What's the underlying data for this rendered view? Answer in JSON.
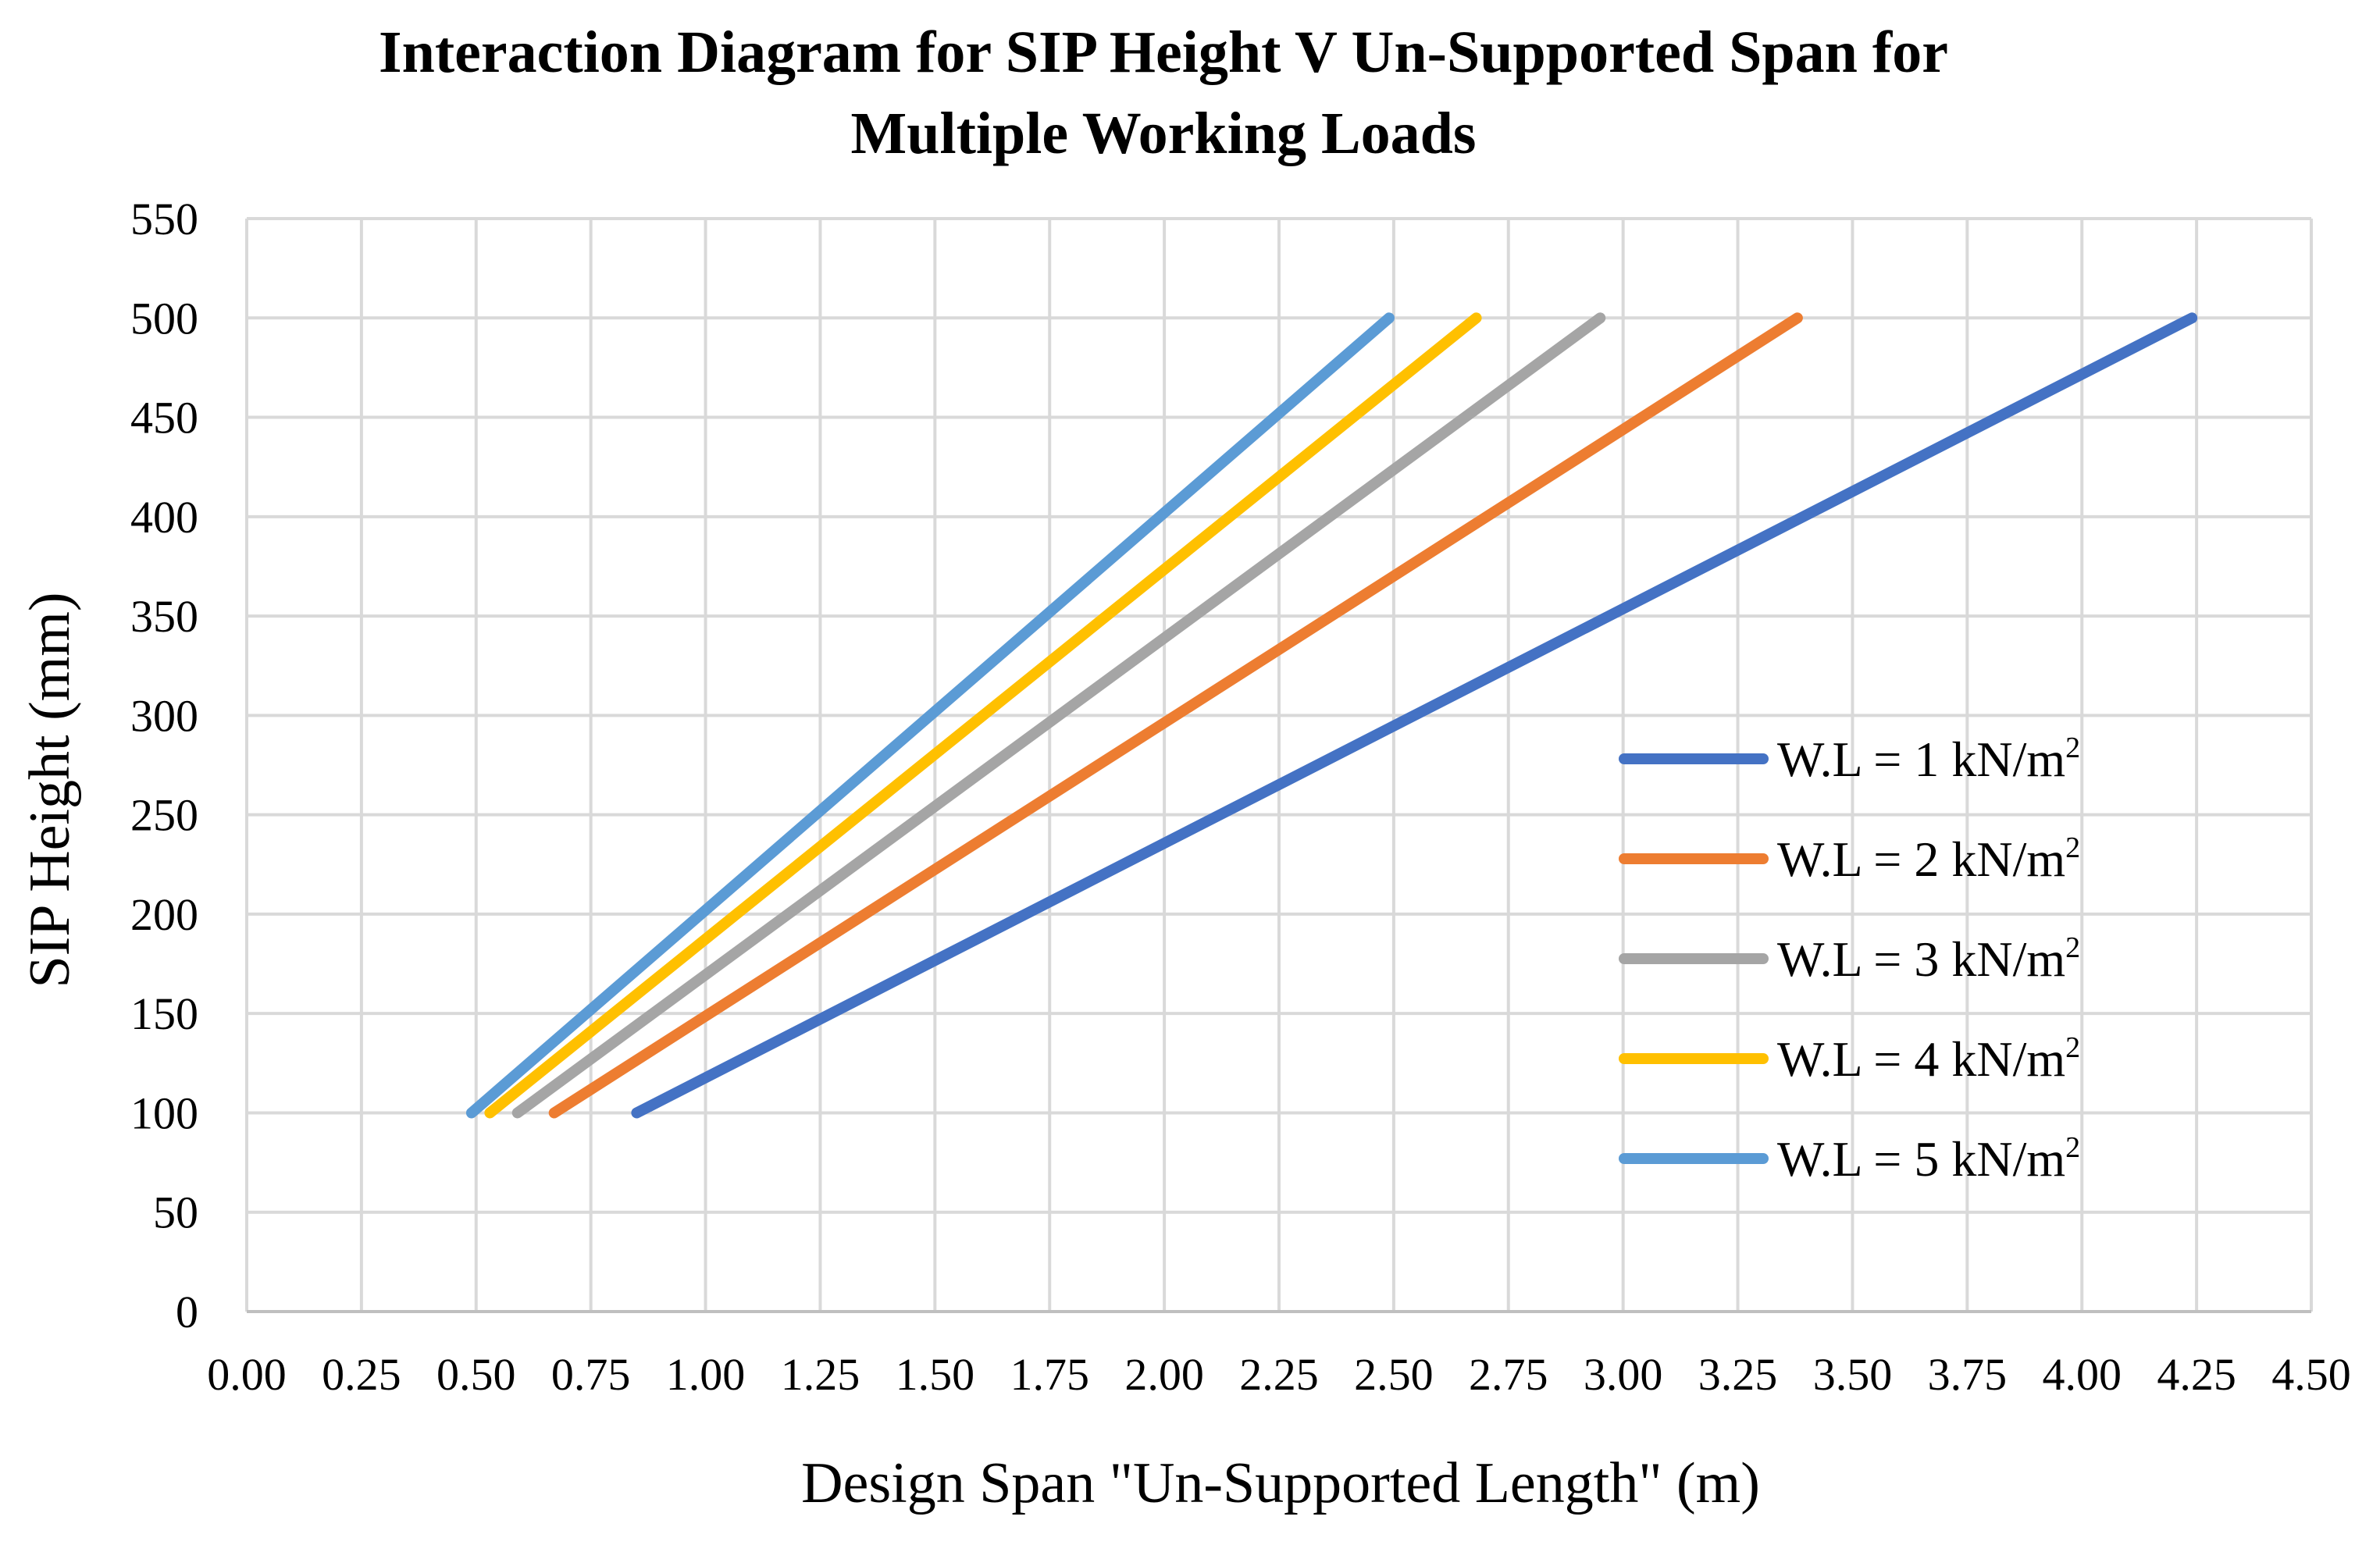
{
  "chart_data": {
    "type": "line",
    "title": [
      "Interaction Diagram for SIP Height V Un-Supported Span for",
      "Multiple Working Loads"
    ],
    "xlabel": "Design Span \"Un-Supported Length\" (m)",
    "ylabel": "SIP Height (mm)",
    "xlim": [
      0,
      4.5
    ],
    "ylim": [
      0,
      550
    ],
    "x_ticks": [
      "0.00",
      "0.25",
      "0.50",
      "0.75",
      "1.00",
      "1.25",
      "1.50",
      "1.75",
      "2.00",
      "2.25",
      "2.50",
      "2.75",
      "3.00",
      "3.25",
      "3.50",
      "3.75",
      "4.00",
      "4.25",
      "4.50"
    ],
    "y_ticks": [
      "0",
      "50",
      "100",
      "150",
      "200",
      "250",
      "300",
      "350",
      "400",
      "450",
      "500",
      "550"
    ],
    "grid": true,
    "legend_position": "right",
    "series": [
      {
        "name": "W.L = 1 kN/m",
        "sup": "2",
        "color": "#4472C4",
        "x": [
          0.85,
          4.24
        ],
        "y": [
          100,
          500
        ]
      },
      {
        "name": "W.L = 2 kN/m",
        "sup": "2",
        "color": "#ED7D31",
        "x": [
          0.67,
          3.38
        ],
        "y": [
          100,
          500
        ]
      },
      {
        "name": "W.L = 3 kN/m",
        "sup": "2",
        "color": "#A5A5A5",
        "x": [
          0.59,
          2.95
        ],
        "y": [
          100,
          500
        ]
      },
      {
        "name": "W.L = 4 kN/m",
        "sup": "2",
        "color": "#FFC000",
        "x": [
          0.53,
          2.68
        ],
        "y": [
          100,
          500
        ]
      },
      {
        "name": "W.L = 5 kN/m",
        "sup": "2",
        "color": "#5B9BD5",
        "x": [
          0.49,
          2.49
        ],
        "y": [
          100,
          500
        ]
      }
    ]
  }
}
